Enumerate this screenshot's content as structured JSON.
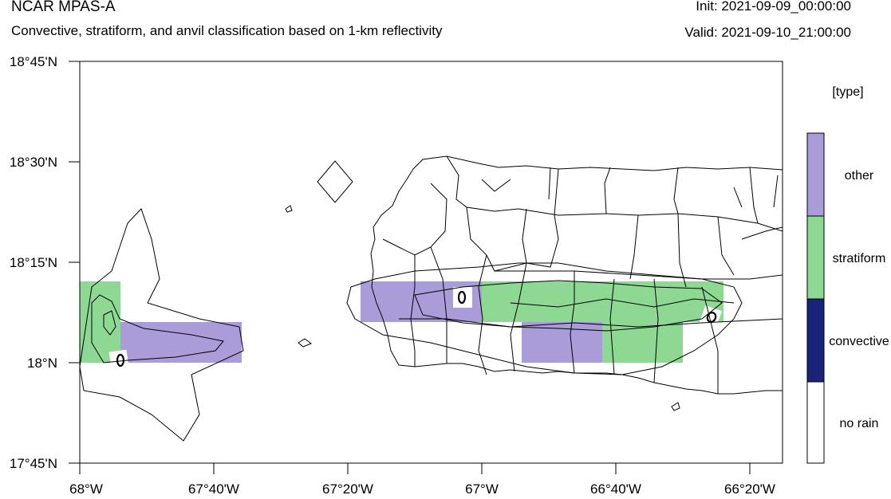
{
  "header": {
    "title": "NCAR MPAS-A",
    "subtitle": "Convective, stratiform, and anvil classification based on 1-km reflectivity",
    "init": "Init: 2021-09-09_00:00:00",
    "valid": "Valid: 2021-09-10_21:00:00"
  },
  "axes": {
    "y_ticks": [
      {
        "label": "18°45'N",
        "value": 18.75
      },
      {
        "label": "18°30'N",
        "value": 18.5
      },
      {
        "label": "18°15'N",
        "value": 18.25
      },
      {
        "label": "18°N",
        "value": 18.0
      },
      {
        "label": "17°45'N",
        "value": 17.75
      }
    ],
    "x_ticks": [
      {
        "label": "68°W",
        "value": -68.0
      },
      {
        "label": "67°40'W",
        "value": -67.6667
      },
      {
        "label": "67°20'W",
        "value": -67.3333
      },
      {
        "label": "67°W",
        "value": -67.0
      },
      {
        "label": "66°40'W",
        "value": -66.6667
      },
      {
        "label": "66°20'W",
        "value": -66.3333
      }
    ]
  },
  "legend": {
    "title": "[type]",
    "items": [
      {
        "label": "other",
        "color": "#aa9cd9"
      },
      {
        "label": "stratiform",
        "color": "#8dd893"
      },
      {
        "label": "convective",
        "color": "#19237a"
      },
      {
        "label": "no rain",
        "color": "#ffffff"
      }
    ]
  }
}
